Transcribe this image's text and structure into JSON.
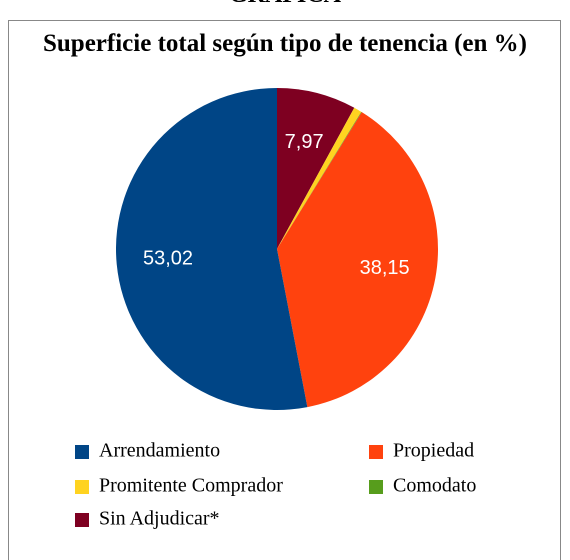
{
  "page_heading": "GRAFICA",
  "chart_data": {
    "type": "pie",
    "title": "Superficie total según tipo de tenencia (en %)",
    "categories": [
      "Arrendamiento",
      "Propiedad",
      "Promitente Comprador",
      "Comodato",
      "Sin Adjudicar*"
    ],
    "values": [
      53.02,
      38.15,
      0.8,
      0.06,
      7.97
    ],
    "value_labels": [
      "53,02",
      "38,15",
      null,
      null,
      "7,97"
    ],
    "colors": [
      "#004586",
      "#ff420e",
      "#ffd320",
      "#579d1c",
      "#7e0021"
    ],
    "legend": "bottom"
  }
}
